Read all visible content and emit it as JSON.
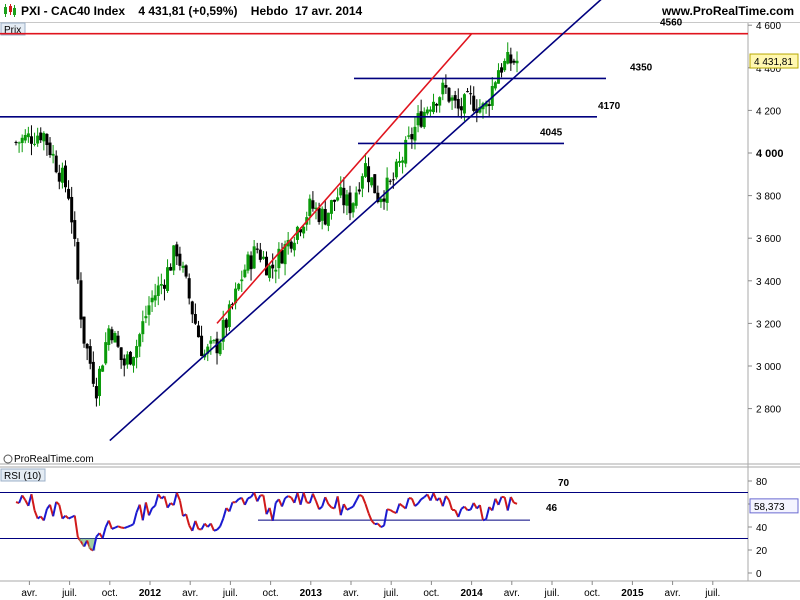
{
  "header": {
    "symbol": "PXI - CAC40 Index",
    "quote": "4 431,81 (+0,59%)",
    "period": "Hebdo",
    "date": "17 avr. 2014",
    "site": "www.ProRealTime.com"
  },
  "watermark": "© ProRealTime.com",
  "colors": {
    "background": "#ffffff",
    "candle_up": "#0a9a0a",
    "candle_down": "#000000",
    "resistance_red": "#e0141e",
    "support_blue": "#00007f",
    "rsi_up": "#1a1ad0",
    "rsi_down": "#d01a1a",
    "badge": "#fff7b0"
  },
  "chart_data": [
    {
      "type": "candlestick",
      "panel_label": "Prix",
      "y_ticks": [
        "4 600",
        "4 400",
        "4 200",
        "4 000",
        "3 800",
        "3 600",
        "3 400",
        "3 200",
        "3 000",
        "2 800"
      ],
      "y_tick_values": [
        4600,
        4400,
        4200,
        4000,
        3800,
        3600,
        3400,
        3200,
        3000,
        2800
      ],
      "x_labels": [
        "avr.",
        "juil.",
        "oct.",
        "2012",
        "avr.",
        "juil.",
        "oct.",
        "2013",
        "avr.",
        "juil.",
        "oct.",
        "2014",
        "avr.",
        "juil.",
        "oct.",
        "2015",
        "avr.",
        "juil."
      ],
      "x_label_dates": [
        "2011-04",
        "2011-07",
        "2011-10",
        "2012-01",
        "2012-04",
        "2012-07",
        "2012-10",
        "2013-01",
        "2013-04",
        "2013-07",
        "2013-10",
        "2014-01",
        "2014-04",
        "2014-07",
        "2014-10",
        "2015-01",
        "2015-04",
        "2015-07"
      ],
      "last_value": "4 431,81",
      "horizontal_levels": [
        {
          "label": "4560",
          "value": 4560,
          "color": "#e0141e"
        },
        {
          "label": "4350",
          "value": 4350,
          "color": "#00007f"
        },
        {
          "label": "4170",
          "value": 4170,
          "color": "#00007f"
        },
        {
          "label": "4045",
          "value": 4045,
          "color": "#00007f"
        }
      ],
      "trend_lines": [
        {
          "color": "#e0141e",
          "from": [
            "2012-06",
            3200
          ],
          "to": [
            "2014-01",
            4560
          ]
        },
        {
          "color": "#00007f",
          "from": [
            "2011-10",
            2650
          ],
          "to": [
            "2014-11",
            4740
          ]
        }
      ],
      "weekly_close_anchors": [
        [
          "2011-03",
          4050
        ],
        [
          "2011-05",
          4100
        ],
        [
          "2011-06",
          3950
        ],
        [
          "2011-07",
          3800
        ],
        [
          "2011-08",
          3150
        ],
        [
          "2011-09",
          2900
        ],
        [
          "2011-10",
          3200
        ],
        [
          "2011-11",
          3000
        ],
        [
          "2011-12",
          3100
        ],
        [
          "2012-01",
          3300
        ],
        [
          "2012-02",
          3400
        ],
        [
          "2012-03",
          3550
        ],
        [
          "2012-04",
          3300
        ],
        [
          "2012-05",
          3050
        ],
        [
          "2012-06",
          3100
        ],
        [
          "2012-07",
          3250
        ],
        [
          "2012-08",
          3450
        ],
        [
          "2012-09",
          3550
        ],
        [
          "2012-10",
          3450
        ],
        [
          "2012-11",
          3550
        ],
        [
          "2012-12",
          3650
        ],
        [
          "2013-01",
          3750
        ],
        [
          "2013-02",
          3700
        ],
        [
          "2013-03",
          3800
        ],
        [
          "2013-04",
          3750
        ],
        [
          "2013-05",
          3950
        ],
        [
          "2013-06",
          3800
        ],
        [
          "2013-07",
          3850
        ],
        [
          "2013-08",
          4000
        ],
        [
          "2013-09",
          4150
        ],
        [
          "2013-10",
          4250
        ],
        [
          "2013-11",
          4300
        ],
        [
          "2013-12",
          4200
        ],
        [
          "2014-01",
          4250
        ],
        [
          "2014-02",
          4200
        ],
        [
          "2014-03",
          4400
        ],
        [
          "2014-04",
          4431.81
        ]
      ]
    },
    {
      "type": "line",
      "panel_label": "RSI (10)",
      "y_ticks": [
        "80",
        "60",
        "40",
        "20",
        "0"
      ],
      "y_tick_values": [
        80,
        60,
        40,
        20,
        0
      ],
      "reference_levels": [
        70,
        30
      ],
      "level_labels": [
        {
          "label": "70",
          "value": 70
        },
        {
          "label": "46",
          "value": 46
        }
      ],
      "last_value": "58,373",
      "series_anchors": [
        [
          "2011-03",
          58
        ],
        [
          "2011-04",
          65
        ],
        [
          "2011-05",
          48
        ],
        [
          "2011-06",
          58
        ],
        [
          "2011-07",
          50
        ],
        [
          "2011-08",
          30
        ],
        [
          "2011-09",
          25
        ],
        [
          "2011-10",
          40
        ],
        [
          "2011-11",
          38
        ],
        [
          "2011-12",
          50
        ],
        [
          "2012-01",
          58
        ],
        [
          "2012-02",
          64
        ],
        [
          "2012-03",
          66
        ],
        [
          "2012-04",
          44
        ],
        [
          "2012-05",
          36
        ],
        [
          "2012-06",
          40
        ],
        [
          "2012-07",
          55
        ],
        [
          "2012-08",
          64
        ],
        [
          "2012-09",
          68
        ],
        [
          "2012-10",
          52
        ],
        [
          "2012-11",
          60
        ],
        [
          "2012-12",
          66
        ],
        [
          "2013-01",
          68
        ],
        [
          "2013-02",
          58
        ],
        [
          "2013-03",
          60
        ],
        [
          "2013-04",
          52
        ],
        [
          "2013-05",
          66
        ],
        [
          "2013-06",
          42
        ],
        [
          "2013-07",
          55
        ],
        [
          "2013-08",
          62
        ],
        [
          "2013-09",
          66
        ],
        [
          "2013-10",
          68
        ],
        [
          "2013-11",
          64
        ],
        [
          "2013-12",
          56
        ],
        [
          "2014-01",
          62
        ],
        [
          "2014-02",
          52
        ],
        [
          "2014-03",
          62
        ],
        [
          "2014-04",
          58.373
        ]
      ]
    }
  ]
}
